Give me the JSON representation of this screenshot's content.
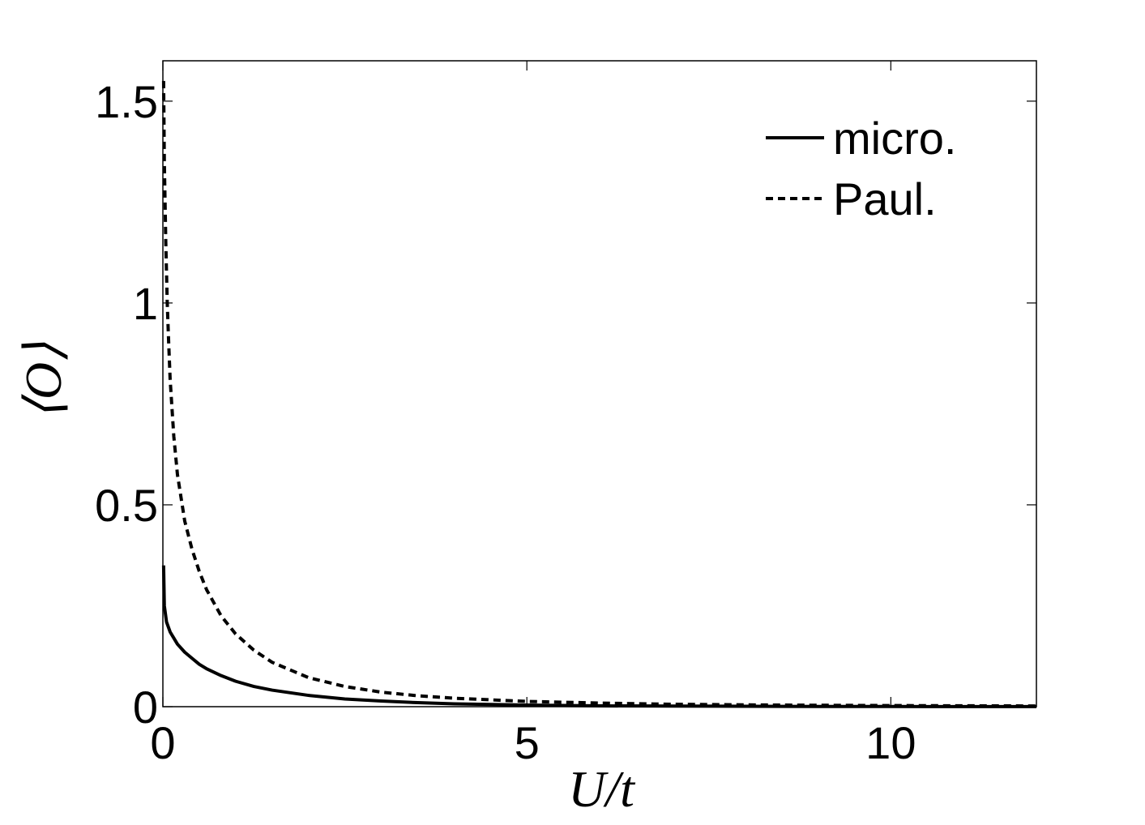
{
  "chart_data": {
    "type": "line",
    "xlabel": "U/t",
    "ylabel": "⟨O⟩",
    "xlim": [
      0,
      12
    ],
    "ylim": [
      0,
      1.6
    ],
    "xticks": [
      0,
      5,
      10
    ],
    "xtick_labels": [
      "0",
      "5",
      "10"
    ],
    "yticks": [
      0,
      0.5,
      1,
      1.5
    ],
    "ytick_labels": [
      "0",
      "0.5",
      "1",
      "1.5"
    ],
    "grid": false,
    "legend_position": "top-right",
    "series": [
      {
        "name": "micro.",
        "style": "solid",
        "color": "#000000",
        "x": [
          0.01,
          0.02,
          0.05,
          0.1,
          0.15,
          0.2,
          0.3,
          0.4,
          0.5,
          0.6,
          0.8,
          1.0,
          1.25,
          1.5,
          2.0,
          2.5,
          3.0,
          3.5,
          4.0,
          5.0,
          6.0,
          7.0,
          8.0,
          9.0,
          10.0,
          11.0,
          12.0
        ],
        "y": [
          0.35,
          0.25,
          0.21,
          0.185,
          0.17,
          0.155,
          0.135,
          0.12,
          0.105,
          0.094,
          0.077,
          0.063,
          0.05,
          0.041,
          0.028,
          0.019,
          0.014,
          0.01,
          0.007,
          0.004,
          0.002,
          0.0015,
          0.001,
          0.0006,
          0.0004,
          0.0003,
          0.0002
        ]
      },
      {
        "name": "Paul.",
        "style": "dashed",
        "color": "#000000",
        "x": [
          0.01,
          0.02,
          0.04,
          0.06,
          0.08,
          0.1,
          0.15,
          0.2,
          0.3,
          0.4,
          0.5,
          0.6,
          0.8,
          1.0,
          1.25,
          1.5,
          2.0,
          2.5,
          3.0,
          3.5,
          4.0,
          5.0,
          6.0,
          7.0,
          8.0,
          9.0,
          10.0,
          11.0,
          12.0
        ],
        "y": [
          1.55,
          1.35,
          1.15,
          1.0,
          0.9,
          0.81,
          0.67,
          0.575,
          0.46,
          0.39,
          0.335,
          0.29,
          0.225,
          0.18,
          0.14,
          0.11,
          0.072,
          0.05,
          0.036,
          0.027,
          0.021,
          0.013,
          0.009,
          0.006,
          0.0045,
          0.0035,
          0.0028,
          0.0022,
          0.0018
        ]
      }
    ]
  }
}
